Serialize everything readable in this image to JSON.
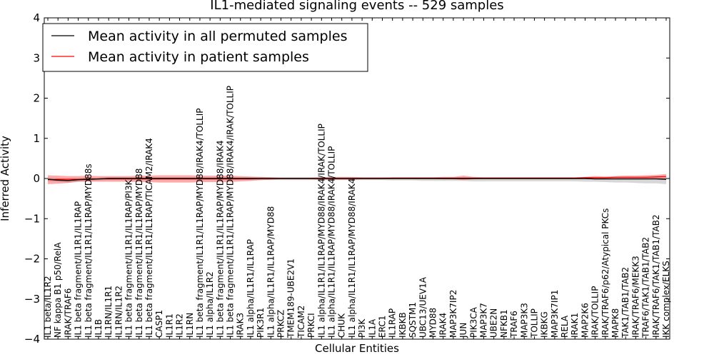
{
  "chart_data": {
    "type": "line",
    "title": "IL1-mediated signaling events -- 529 samples",
    "xlabel": "Cellular Entities",
    "ylabel": "Inferred Activity",
    "ylim": [
      -4,
      4
    ],
    "yticks": [
      -4,
      -3,
      -2,
      -1,
      0,
      1,
      2,
      3,
      4
    ],
    "ytick_labels": [
      "−4",
      "−3",
      "−2",
      "−1",
      "0",
      "1",
      "2",
      "3",
      "4"
    ],
    "legend": {
      "placement": "top-left",
      "entries": [
        {
          "label": "Mean activity in all permuted samples",
          "color": "#000000"
        },
        {
          "label": "Mean activity in patient samples",
          "color": "#ff0000"
        }
      ]
    },
    "categories": [
      "IL1 beta/IL1R2",
      "NF kappa B1 p50/RelA",
      "IRAK/TRAF6",
      "IL1 beta fragment/IL1R1/IL1RAP",
      "IL1 beta fragment/IL1R1/IL1RAP/MYD88s",
      "IL1B",
      "IL1RN/IL1R1",
      "IL1RN/IL1R2",
      "IL1 beta fragment/IL1R1/IL1RAP/PI3K",
      "IL1 beta fragment/IL1R1/IL1RAP/MYD88",
      "IL1 beta fragment/IL1R1/IL1RAP/TICAM2/IRAK4",
      "CASP1",
      "IL1R1",
      "IL1R2",
      "IL1RN",
      "IL1 beta fragment/IL1R1/IL1RAP/MYD88/IRAK4/TOLLIP",
      "IL1 alpha/IL1R2",
      "IL1 beta fragment/IL1R1/IL1RAP/MYD88/IRAK4",
      "IL1 beta fragment/IL1R1/IL1RAP/MYD88/IRAK4/IRAK/TOLLIP",
      "IRAK3",
      "IL1 alpha/IL1R1/IL1RAP",
      "PIK3R1",
      "IL1 alpha/IL1R1/IL1RAP/MYD88",
      "PRKCZ",
      "TMEM189-UBE2V1",
      "TICAM2",
      "PRKCI",
      "IL1 alpha/IL1R1/IL1RAP/MYD88/IRAK4/IRAK/TOLLIP",
      "IL1 alpha/IL1R1/IL1RAP/MYD88/IRAK4/TOLLIP",
      "CHUK",
      "IL1 alpha/IL1R1/IL1RAP/MYD88/IRAK4",
      "PI3K",
      "IL1A",
      "ERC1",
      "IL1RAP",
      "IKBKB",
      "SQSTM1",
      "UBC13/UEV1A",
      "MYD88",
      "IRAK4",
      "MAP3K7IP2",
      "JUN",
      "PIK3CA",
      "MAP3K7",
      "UBE2N",
      "NFKB1",
      "TRAF6",
      "MAP3K3",
      "TOLLIP",
      "IKBKG",
      "MAP3K7IP1",
      "RELA",
      "IRAK1",
      "MAP2K6",
      "IRAK/TOLLIP",
      "IRAK/TRAF6/p62/Atypical PKCs",
      "MAPK8",
      "TAK1/TAB1/TAB2",
      "IRAK/TRAF6/MEKK3",
      "TRAF6/TAK1/TAB1/TAB2",
      "IRAK/TRAF6/TAK1/TAB1/TAB2",
      "IKK complex/ELKS"
    ],
    "series": [
      {
        "name": "Mean activity in patient samples",
        "color": "#ff0000",
        "values": [
          -0.03,
          -0.02,
          -0.02,
          -0.02,
          -0.01,
          -0.01,
          -0.01,
          -0.01,
          -0.01,
          -0.01,
          -0.01,
          -0.01,
          -0.01,
          -0.01,
          -0.01,
          -0.01,
          -0.01,
          -0.01,
          -0.01,
          -0.01,
          -0.01,
          0.0,
          0.0,
          0.0,
          0.0,
          0.0,
          0.0,
          0.0,
          0.0,
          0.0,
          0.0,
          0.0,
          0.0,
          0.0,
          0.01,
          0.01,
          0.01,
          0.01,
          0.01,
          0.01,
          0.01,
          0.01,
          0.01,
          0.01,
          0.01,
          0.01,
          0.01,
          0.01,
          0.01,
          0.01,
          0.01,
          0.01,
          0.01,
          0.02,
          0.02,
          0.02,
          0.03,
          0.03,
          0.03,
          0.03,
          0.04,
          0.05
        ],
        "band_upper": [
          0.08,
          0.07,
          0.06,
          0.06,
          0.07,
          0.06,
          0.06,
          0.06,
          0.06,
          0.07,
          0.07,
          0.08,
          0.08,
          0.08,
          0.08,
          0.07,
          0.07,
          0.07,
          0.07,
          0.06,
          0.05,
          0.04,
          0.03,
          0.02,
          0.02,
          0.02,
          0.02,
          0.03,
          0.04,
          0.04,
          0.04,
          0.03,
          0.03,
          0.03,
          0.03,
          0.03,
          0.03,
          0.03,
          0.03,
          0.04,
          0.04,
          0.07,
          0.04,
          0.03,
          0.03,
          0.03,
          0.03,
          0.03,
          0.03,
          0.03,
          0.03,
          0.03,
          0.03,
          0.04,
          0.06,
          0.05,
          0.06,
          0.07,
          0.07,
          0.08,
          0.09,
          0.11
        ],
        "band_lower": [
          -0.14,
          -0.13,
          -0.11,
          -0.08,
          -0.08,
          -0.08,
          -0.08,
          -0.08,
          -0.08,
          -0.09,
          -0.09,
          -0.1,
          -0.1,
          -0.1,
          -0.1,
          -0.09,
          -0.09,
          -0.09,
          -0.09,
          -0.07,
          -0.06,
          -0.04,
          -0.03,
          -0.02,
          -0.02,
          -0.02,
          -0.02,
          -0.03,
          -0.03,
          -0.03,
          -0.03,
          -0.02,
          -0.02,
          -0.02,
          -0.01,
          -0.01,
          -0.01,
          -0.01,
          -0.01,
          -0.02,
          -0.02,
          -0.04,
          -0.02,
          -0.01,
          -0.01,
          -0.01,
          -0.01,
          -0.01,
          -0.01,
          -0.01,
          -0.01,
          -0.01,
          -0.01,
          -0.01,
          -0.02,
          -0.01,
          0.0,
          -0.01,
          -0.01,
          -0.01,
          -0.01,
          -0.01
        ]
      },
      {
        "name": "Mean activity in all permuted samples",
        "color": "#000000",
        "values": [
          -0.02,
          -0.04,
          -0.05,
          -0.03,
          -0.02,
          -0.01,
          0.0,
          0.0,
          0.0,
          0.0,
          0.0,
          0.0,
          0.0,
          0.0,
          0.0,
          0.0,
          0.0,
          0.0,
          0.0,
          0.0,
          0.0,
          0.0,
          0.0,
          0.0,
          0.0,
          0.0,
          0.0,
          0.0,
          0.0,
          0.0,
          0.0,
          0.0,
          0.0,
          0.0,
          0.0,
          0.0,
          0.0,
          0.0,
          0.0,
          0.0,
          0.0,
          0.0,
          0.0,
          0.0,
          0.0,
          0.0,
          0.0,
          0.0,
          0.0,
          0.0,
          0.0,
          0.0,
          0.0,
          0.0,
          -0.01,
          -0.01,
          -0.01,
          -0.01,
          -0.01,
          -0.01,
          -0.01,
          -0.02
        ],
        "band_upper": [
          0.02,
          0.01,
          0.0,
          0.01,
          0.02,
          0.02,
          0.03,
          0.03,
          0.03,
          0.03,
          0.03,
          0.03,
          0.03,
          0.03,
          0.03,
          0.03,
          0.03,
          0.03,
          0.03,
          0.03,
          0.03,
          0.03,
          0.03,
          0.03,
          0.03,
          0.03,
          0.03,
          0.03,
          0.03,
          0.03,
          0.03,
          0.03,
          0.03,
          0.03,
          0.03,
          0.03,
          0.03,
          0.03,
          0.03,
          0.03,
          0.03,
          0.03,
          0.03,
          0.03,
          0.03,
          0.03,
          0.03,
          0.03,
          0.03,
          0.03,
          0.03,
          0.03,
          0.03,
          0.03,
          0.03,
          0.03,
          0.04,
          0.04,
          0.04,
          0.05,
          0.05,
          0.05
        ],
        "band_lower": [
          -0.06,
          -0.08,
          -0.1,
          -0.08,
          -0.06,
          -0.05,
          -0.04,
          -0.04,
          -0.04,
          -0.04,
          -0.04,
          -0.04,
          -0.04,
          -0.04,
          -0.04,
          -0.04,
          -0.04,
          -0.04,
          -0.04,
          -0.04,
          -0.04,
          -0.04,
          -0.04,
          -0.04,
          -0.04,
          -0.04,
          -0.04,
          -0.04,
          -0.04,
          -0.04,
          -0.04,
          -0.04,
          -0.04,
          -0.04,
          -0.05,
          -0.05,
          -0.05,
          -0.06,
          -0.06,
          -0.06,
          -0.06,
          -0.06,
          -0.07,
          -0.07,
          -0.07,
          -0.07,
          -0.07,
          -0.07,
          -0.07,
          -0.07,
          -0.07,
          -0.07,
          -0.07,
          -0.08,
          -0.08,
          -0.09,
          -0.1,
          -0.1,
          -0.11,
          -0.12,
          -0.12,
          -0.14
        ]
      }
    ]
  }
}
